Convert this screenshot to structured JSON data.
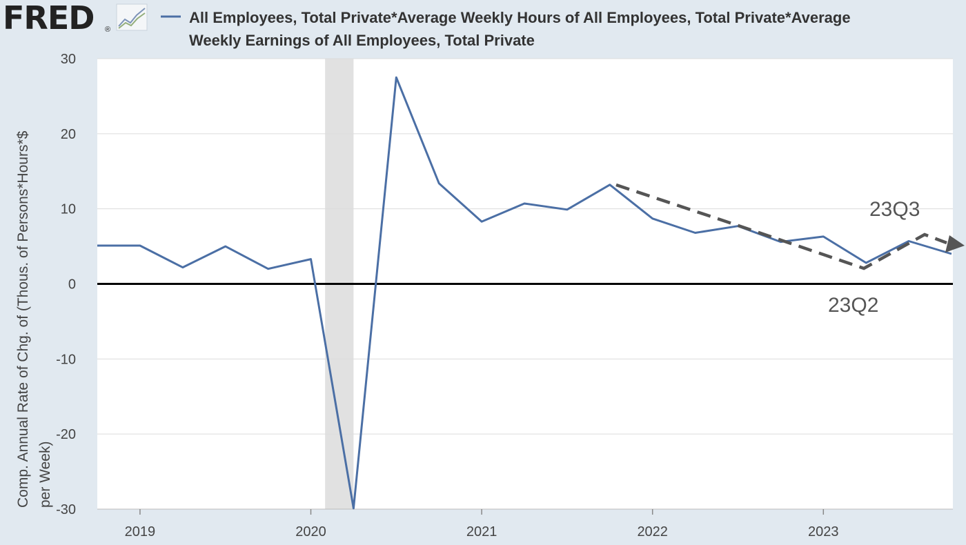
{
  "header": {
    "logo_text": "FRED",
    "logo_mark": "®",
    "logo_icon": "line-chart-icon",
    "legend_label_line1": "All Employees, Total Private*Average Weekly Hours of All Employees, Total Private*Average",
    "legend_label_line2": "Weekly Earnings of All Employees, Total Private"
  },
  "colors": {
    "background": "#e1e9f0",
    "plot_bg": "#ffffff",
    "series": "#4b6fa5",
    "recession": "#e1e1e1",
    "zero_line": "#000000",
    "annotation": "#555555",
    "text": "#444444"
  },
  "chart_data": {
    "type": "line",
    "title": "",
    "ylabel_line1": "Comp. Annual Rate of Chg. of (Thous. of Persons*Hours*$",
    "ylabel_line2": "per Week)",
    "ylim": [
      -30,
      30
    ],
    "yticks": [
      -30,
      -20,
      -10,
      0,
      10,
      20,
      30
    ],
    "xticks": [
      "2019",
      "2020",
      "2021",
      "2022",
      "2023"
    ],
    "grid": true,
    "recession_shading": [
      [
        "2020-02",
        "2020-04"
      ]
    ],
    "series": [
      {
        "name": "All Employees, Total Private*Average Weekly Hours of All Employees, Total Private*Average Weekly Earnings of All Employees, Total Private",
        "x": [
          "2018Q4",
          "2019Q1",
          "2019Q2",
          "2019Q3",
          "2019Q4",
          "2020Q1",
          "2020Q2",
          "2020Q3",
          "2020Q4",
          "2021Q1",
          "2021Q2",
          "2021Q3",
          "2021Q4",
          "2022Q1",
          "2022Q2",
          "2022Q3",
          "2022Q4",
          "2023Q1",
          "2023Q2",
          "2023Q3",
          "2023Q4"
        ],
        "values": [
          5.1,
          5.1,
          2.2,
          5.0,
          2.0,
          3.3,
          -29.9,
          27.5,
          13.4,
          8.3,
          10.7,
          9.9,
          13.2,
          8.7,
          6.8,
          7.7,
          5.6,
          6.3,
          2.8,
          5.7,
          4.0
        ]
      }
    ],
    "annotations": [
      {
        "text": "23Q3"
      },
      {
        "text": "23Q2"
      }
    ]
  }
}
